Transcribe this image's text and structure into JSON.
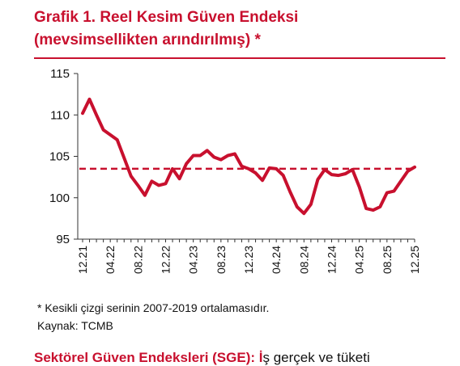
{
  "title_line1": "Grafik 1. Reel Kesim Güven Endeksi",
  "title_line2": "(mevsimsellikten arındırılmış) *",
  "footnote": "* Kesikli çizgi serinin 2007-2019 ortalamasıdır.",
  "source": "Kaynak: TCMB",
  "next_heading": "Sektörel Güven Endeksleri (SGE): İ",
  "next_heading_tail": "ş gerçek ve tüketi",
  "colors": {
    "series": "#c8102e",
    "title": "#c8102e",
    "axis": "#333333"
  },
  "chart_data": {
    "type": "line",
    "title": "Grafik 1. Reel Kesim Güven Endeksi (mevsimsellikten arındırılmış) *",
    "xlabel": "",
    "ylabel": "",
    "ylim": [
      95,
      115
    ],
    "yticks": [
      95,
      100,
      105,
      110,
      115
    ],
    "xtick_labels": [
      "12.21",
      "04.22",
      "08.22",
      "12.22",
      "04.23",
      "08.23",
      "12.23",
      "04.24",
      "08.24",
      "12.24",
      "04.25",
      "08.25",
      "12.25"
    ],
    "x": [
      "12.21",
      "01.22",
      "02.22",
      "03.22",
      "04.22",
      "05.22",
      "06.22",
      "07.22",
      "08.22",
      "09.22",
      "10.22",
      "11.22",
      "12.22",
      "01.23",
      "02.23",
      "03.23",
      "04.23",
      "05.23",
      "06.23",
      "07.23",
      "08.23",
      "09.23",
      "10.23",
      "11.23",
      "12.23",
      "01.24",
      "02.24",
      "03.24",
      "04.24",
      "05.24",
      "06.24",
      "07.24",
      "08.24",
      "09.24",
      "10.24",
      "11.24",
      "12.24",
      "01.25",
      "02.25",
      "03.25",
      "04.25",
      "05.25",
      "06.25",
      "07.25",
      "08.25",
      "09.25",
      "10.25",
      "11.25",
      "12.25"
    ],
    "series": [
      {
        "values": [
          110.2,
          111.9,
          110.0,
          108.2,
          107.6,
          107.0,
          104.8,
          102.6,
          101.5,
          100.3,
          102.0,
          101.5,
          101.7,
          103.5,
          102.3,
          104.1,
          105.1,
          105.1,
          105.7,
          104.9,
          104.6,
          105.1,
          105.3,
          103.8,
          103.5,
          103.0,
          102.1,
          103.6,
          103.5,
          102.7,
          100.7,
          98.9,
          98.1,
          99.2,
          102.2,
          103.4,
          102.8,
          102.7,
          102.9,
          103.4,
          101.3,
          98.7,
          98.5,
          98.9,
          100.6,
          100.8,
          102.0,
          103.2,
          103.7
        ]
      }
    ],
    "reference_line": {
      "value": 103.5,
      "style": "dashed"
    },
    "grid": false,
    "legend": "none"
  }
}
